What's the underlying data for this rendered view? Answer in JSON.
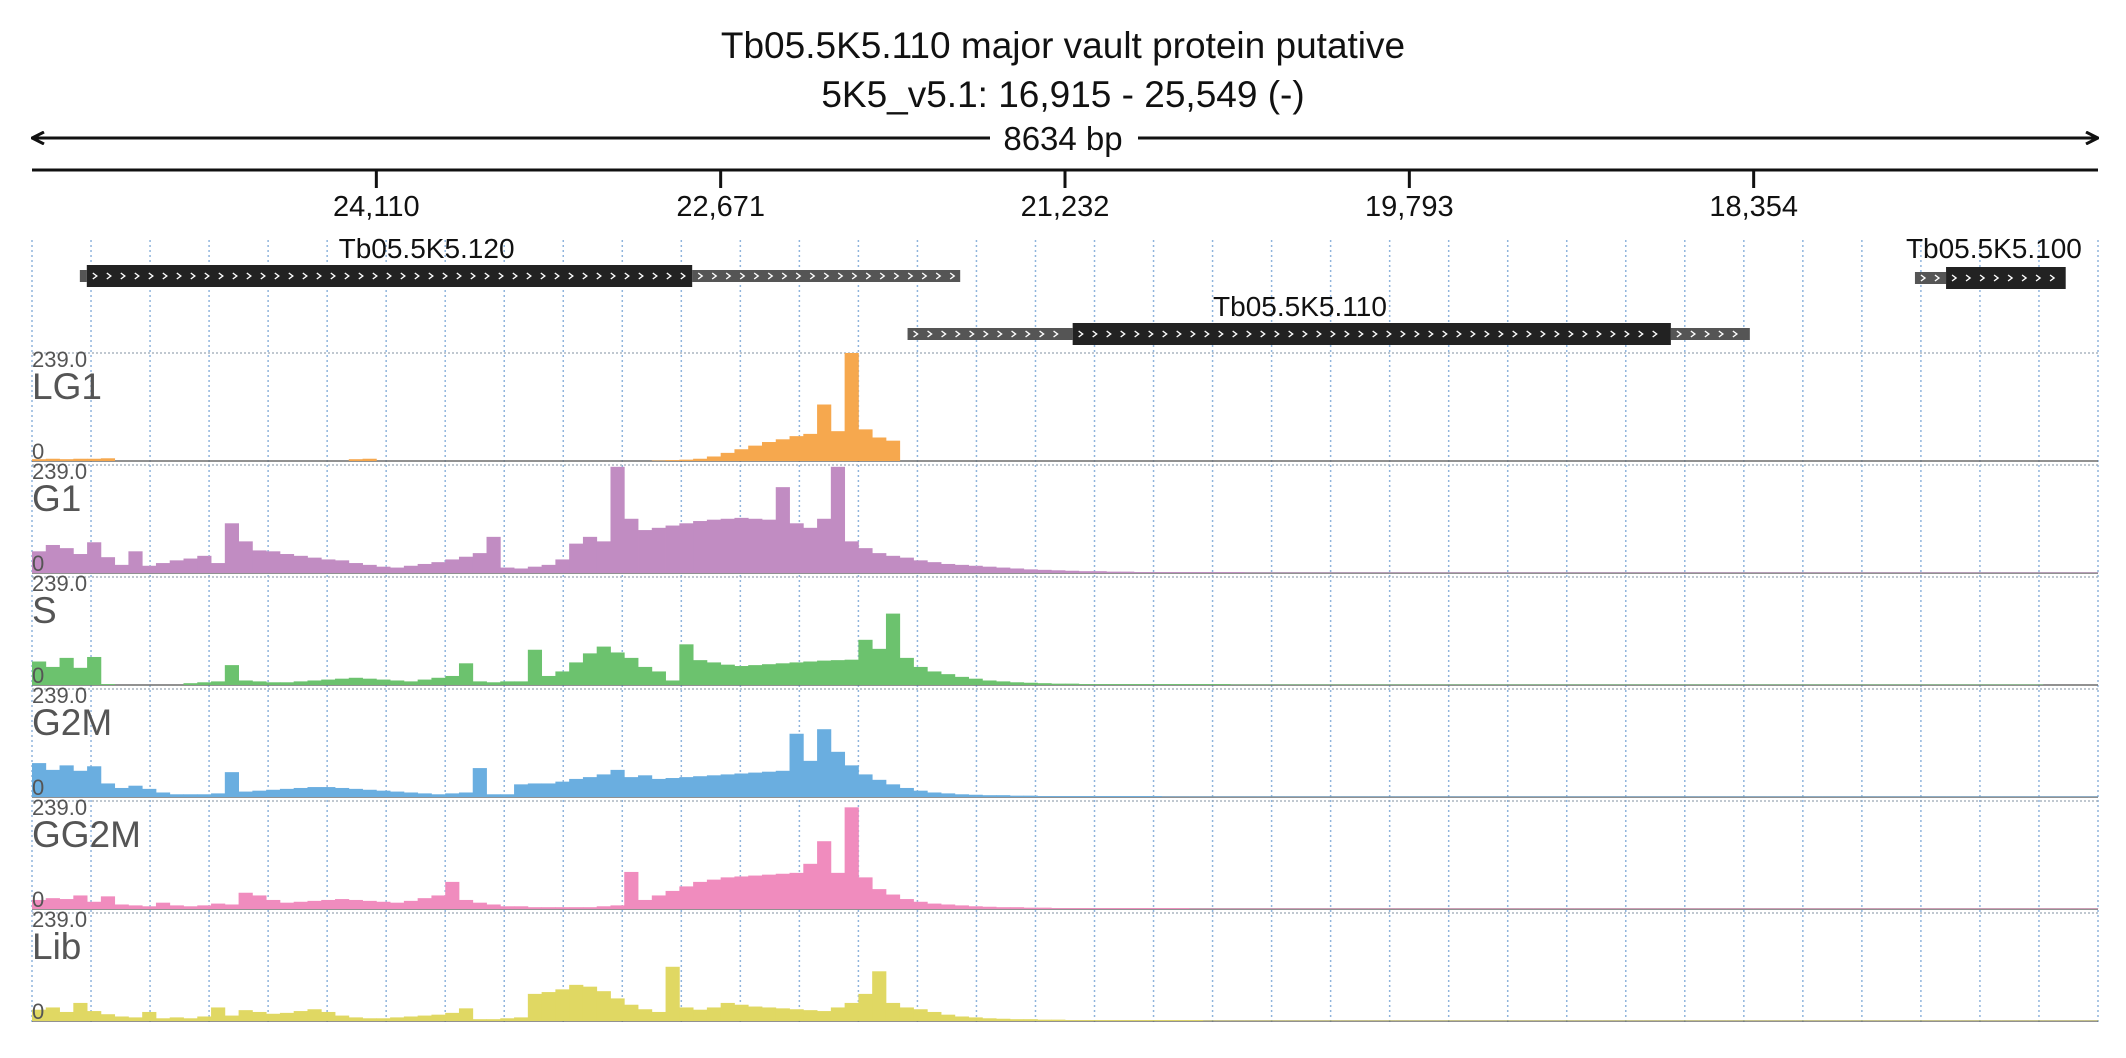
{
  "chart_data": {
    "type": "area",
    "title": "Tb05.5K5.110  major vault protein  putative",
    "subtitle": "5K5_v5.1: 16,915 - 25,549 (-)",
    "span_label": "8634 bp",
    "x_axis": {
      "reversed": true,
      "range": [
        25549,
        16915
      ],
      "ticks": [
        24110,
        22671,
        21232,
        19793,
        18354
      ],
      "tick_labels": [
        "24,110",
        "22,671",
        "21,232",
        "19,793",
        "18,354"
      ]
    },
    "ylim": [
      0,
      239.0
    ],
    "y_max_label": "239.0",
    "y_min_label": "0",
    "genes": [
      {
        "name": "Tb05.5K5.120",
        "utr5": [
          25349,
          25320
        ],
        "cds": [
          25320,
          22790
        ],
        "utr3": [
          22790,
          21670
        ],
        "label_x": 23900
      },
      {
        "name": "Tb05.5K5.110",
        "utr5": [
          21890,
          21200
        ],
        "cds": [
          21200,
          18700
        ],
        "utr3": [
          18700,
          18370
        ],
        "label_x": 20250
      },
      {
        "name": "Tb05.5K5.100",
        "utr5": [
          17680,
          17550
        ],
        "cds": [
          17550,
          17050
        ],
        "utr3": [
          17050,
          17050
        ],
        "label_x": 17350
      }
    ],
    "bins": {
      "start": 25549,
      "end": 16915,
      "count": 150
    },
    "series": [
      {
        "name": "LG1",
        "color": "#f6a84e",
        "values": [
          4,
          5,
          4,
          5,
          5,
          6,
          0,
          0,
          0,
          0,
          0,
          0,
          0,
          0,
          0,
          0,
          0,
          0,
          0,
          0,
          0,
          0,
          0,
          4,
          5,
          0,
          0,
          0,
          0,
          0,
          0,
          0,
          0,
          0,
          0,
          0,
          0,
          0,
          0,
          0,
          0,
          0,
          0,
          0,
          0,
          1,
          2,
          3,
          5,
          10,
          18,
          26,
          34,
          42,
          48,
          55,
          60,
          125,
          66,
          239,
          70,
          52,
          45,
          0,
          0,
          0,
          0,
          0,
          0,
          0,
          0,
          0,
          0,
          0,
          0,
          0,
          0,
          0,
          0,
          0,
          0,
          0,
          0,
          0,
          0,
          0,
          0,
          0,
          0,
          0,
          0,
          0,
          0,
          0,
          0,
          0,
          0,
          0,
          0,
          0,
          0,
          0,
          0,
          0,
          0,
          0,
          0,
          0,
          0,
          0,
          0,
          0,
          0,
          0,
          0,
          0,
          0,
          0,
          0,
          0,
          0,
          0,
          0,
          0,
          0,
          0,
          0,
          0,
          0,
          0,
          0,
          0,
          0,
          0,
          0,
          0,
          0,
          0,
          0,
          0,
          0,
          0,
          0,
          0,
          0,
          0,
          0,
          0,
          0,
          0
        ]
      },
      {
        "name": "G1",
        "color": "#c18cc2",
        "values": [
          48,
          62,
          55,
          42,
          68,
          35,
          18,
          48,
          16,
          22,
          28,
          32,
          38,
          22,
          110,
          70,
          50,
          48,
          42,
          38,
          34,
          30,
          28,
          22,
          18,
          14,
          12,
          16,
          20,
          24,
          30,
          36,
          44,
          80,
          12,
          10,
          14,
          18,
          30,
          65,
          80,
          70,
          235,
          120,
          95,
          100,
          105,
          110,
          115,
          118,
          120,
          122,
          120,
          118,
          190,
          110,
          100,
          120,
          235,
          70,
          55,
          44,
          38,
          34,
          28,
          24,
          20,
          18,
          16,
          14,
          12,
          10,
          8,
          7,
          6,
          5,
          4,
          4,
          3,
          3,
          2,
          2,
          2,
          2,
          2,
          2,
          2,
          2,
          1,
          1,
          1,
          1,
          1,
          1,
          1,
          1,
          1,
          1,
          1,
          1,
          1,
          1,
          1,
          1,
          1,
          1,
          1,
          1,
          1,
          1,
          1,
          1,
          1,
          1,
          1,
          1,
          1,
          1,
          1,
          1,
          1,
          1,
          1,
          1,
          1,
          1,
          1,
          1,
          1,
          1,
          1,
          1,
          1,
          1,
          1,
          1,
          1,
          1,
          1,
          1,
          1,
          1,
          1,
          1,
          1,
          1,
          1,
          1,
          1,
          1
        ]
      },
      {
        "name": "S",
        "color": "#6cc26e",
        "values": [
          52,
          40,
          60,
          38,
          62,
          2,
          0,
          0,
          0,
          0,
          0,
          4,
          6,
          8,
          44,
          10,
          8,
          6,
          6,
          8,
          10,
          12,
          14,
          16,
          14,
          12,
          10,
          8,
          12,
          16,
          20,
          48,
          8,
          6,
          8,
          8,
          78,
          20,
          30,
          50,
          70,
          85,
          72,
          60,
          40,
          30,
          10,
          90,
          55,
          50,
          45,
          42,
          44,
          46,
          48,
          50,
          52,
          54,
          55,
          56,
          100,
          80,
          158,
          60,
          40,
          30,
          24,
          18,
          14,
          10,
          8,
          6,
          5,
          4,
          3,
          3,
          2,
          2,
          2,
          2,
          2,
          2,
          2,
          2,
          2,
          2,
          2,
          1,
          1,
          1,
          1,
          1,
          1,
          1,
          1,
          1,
          1,
          1,
          1,
          1,
          1,
          1,
          1,
          1,
          1,
          1,
          1,
          1,
          1,
          1,
          1,
          1,
          1,
          1,
          1,
          1,
          1,
          1,
          1,
          1,
          1,
          1,
          1,
          1,
          1,
          1,
          1,
          1,
          1,
          1,
          1,
          1,
          1,
          1,
          1,
          1,
          1,
          1,
          1,
          1,
          1,
          1,
          1,
          1,
          1,
          1
        ]
      },
      {
        "name": "G2M",
        "color": "#6aaee0",
        "values": [
          75,
          60,
          70,
          58,
          68,
          30,
          20,
          25,
          18,
          10,
          6,
          6,
          6,
          8,
          55,
          12,
          14,
          16,
          18,
          20,
          22,
          22,
          20,
          18,
          16,
          14,
          12,
          10,
          8,
          6,
          8,
          10,
          64,
          6,
          6,
          28,
          30,
          30,
          34,
          40,
          44,
          50,
          60,
          44,
          48,
          40,
          42,
          44,
          46,
          48,
          50,
          52,
          54,
          56,
          58,
          140,
          80,
          150,
          100,
          70,
          50,
          38,
          28,
          20,
          14,
          10,
          8,
          6,
          5,
          4,
          4,
          3,
          3,
          2,
          2,
          2,
          2,
          2,
          2,
          2,
          2,
          2,
          1,
          1,
          1,
          1,
          1,
          1,
          1,
          1,
          1,
          1,
          1,
          1,
          1,
          1,
          1,
          1,
          1,
          1,
          1,
          1,
          1,
          1,
          1,
          1,
          1,
          1,
          1,
          1,
          1,
          1,
          1,
          1,
          1,
          1,
          1,
          1,
          1,
          1,
          1,
          1,
          1,
          1,
          1,
          1,
          1,
          1,
          1,
          1,
          1,
          1,
          1,
          1,
          1,
          1,
          1,
          1,
          1,
          1,
          1,
          1,
          1,
          1,
          1,
          1,
          1,
          1,
          1,
          1
        ]
      },
      {
        "name": "GG2M",
        "color": "#f08cbe",
        "values": [
          20,
          24,
          22,
          30,
          16,
          28,
          10,
          8,
          6,
          14,
          8,
          6,
          8,
          12,
          10,
          36,
          30,
          20,
          14,
          16,
          18,
          20,
          22,
          20,
          18,
          16,
          14,
          18,
          24,
          30,
          60,
          20,
          14,
          10,
          6,
          6,
          4,
          4,
          4,
          4,
          4,
          6,
          8,
          82,
          20,
          30,
          40,
          50,
          60,
          65,
          70,
          72,
          74,
          76,
          78,
          80,
          100,
          150,
          80,
          225,
          70,
          44,
          32,
          22,
          16,
          12,
          10,
          8,
          6,
          5,
          4,
          4,
          3,
          3,
          2,
          2,
          2,
          2,
          2,
          2,
          2,
          2,
          2,
          2,
          1,
          1,
          1,
          1,
          1,
          1,
          1,
          1,
          1,
          1,
          1,
          1,
          1,
          1,
          1,
          1,
          1,
          1,
          1,
          1,
          1,
          1,
          1,
          1,
          1,
          1,
          1,
          1,
          1,
          1,
          1,
          1,
          1,
          1,
          1,
          1,
          1,
          1,
          1,
          1,
          1,
          1,
          1,
          1,
          1,
          1,
          1,
          1,
          1,
          1,
          1,
          1,
          1,
          1,
          1,
          1,
          1,
          1,
          1,
          1,
          1,
          1,
          1,
          1,
          1,
          1
        ]
      },
      {
        "name": "Lib",
        "color": "#e0d863",
        "values": [
          25,
          30,
          20,
          40,
          22,
          15,
          10,
          8,
          20,
          6,
          8,
          6,
          10,
          30,
          12,
          24,
          20,
          16,
          18,
          22,
          26,
          20,
          12,
          8,
          6,
          6,
          8,
          10,
          12,
          14,
          18,
          28,
          4,
          4,
          6,
          8,
          60,
          64,
          70,
          80,
          76,
          66,
          50,
          36,
          26,
          20,
          120,
          30,
          25,
          30,
          40,
          36,
          32,
          30,
          28,
          26,
          24,
          22,
          30,
          40,
          60,
          110,
          40,
          30,
          26,
          20,
          14,
          10,
          8,
          6,
          5,
          4,
          4,
          3,
          3,
          2,
          2,
          2,
          2,
          2,
          2,
          2,
          2,
          2,
          2,
          1,
          1,
          1,
          1,
          1,
          1,
          1,
          1,
          1,
          1,
          1,
          1,
          1,
          1,
          1,
          1,
          1,
          1,
          1,
          1,
          1,
          1,
          1,
          1,
          1,
          1,
          1,
          1,
          1,
          1,
          1,
          1,
          1,
          1,
          1,
          1,
          1,
          1,
          1,
          1,
          1,
          1,
          1,
          1,
          1,
          1,
          1,
          1,
          1,
          1,
          1,
          1,
          1,
          1,
          1,
          1,
          1,
          1,
          1,
          1,
          1,
          1,
          1,
          1,
          1
        ]
      }
    ],
    "grid": true,
    "legend": "none"
  }
}
